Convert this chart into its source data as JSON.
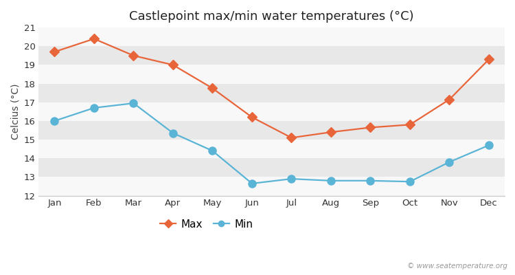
{
  "title": "Castlepoint max/min water temperatures (°C)",
  "ylabel": "Celcius (°C)",
  "months": [
    "Jan",
    "Feb",
    "Mar",
    "Apr",
    "May",
    "Jun",
    "Jul",
    "Aug",
    "Sep",
    "Oct",
    "Nov",
    "Dec"
  ],
  "max_temps": [
    19.7,
    20.4,
    19.5,
    19.0,
    17.75,
    16.2,
    15.1,
    15.4,
    15.65,
    15.8,
    17.15,
    19.3
  ],
  "min_temps": [
    16.0,
    16.7,
    16.95,
    15.35,
    14.4,
    12.65,
    12.9,
    12.8,
    12.8,
    12.75,
    13.8,
    14.7
  ],
  "max_color": "#e8653a",
  "min_color": "#5ab4d6",
  "fig_background": "#ffffff",
  "plot_bg_color": "#f0f0f0",
  "band_color_light": "#f8f8f8",
  "band_color_dark": "#e8e8e8",
  "ylim": [
    12,
    21
  ],
  "yticks": [
    12,
    13,
    14,
    15,
    16,
    17,
    18,
    19,
    20,
    21
  ],
  "watermark": "© www.seatemperature.org",
  "legend_labels": [
    "Max",
    "Min"
  ],
  "title_fontsize": 13,
  "label_fontsize": 10,
  "tick_fontsize": 9.5,
  "max_marker": "D",
  "min_marker": "o",
  "max_markersize": 7,
  "min_markersize": 8,
  "linewidth": 1.6
}
